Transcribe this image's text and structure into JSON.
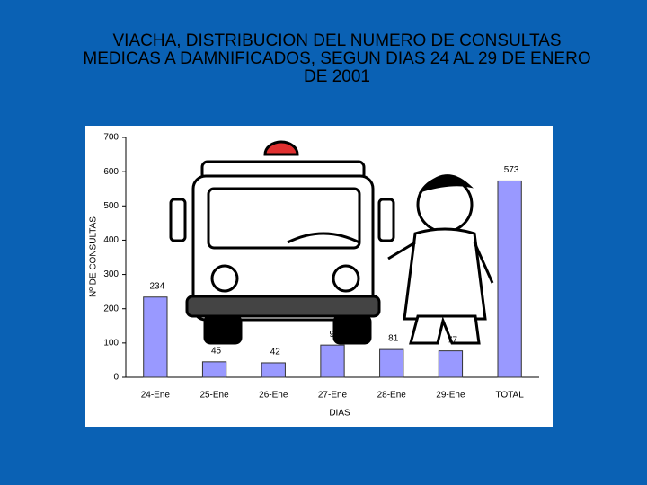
{
  "chart_data": {
    "type": "bar",
    "title": "VIACHA, DISTRIBUCION DEL NUMERO DE CONSULTAS MEDICAS A DAMNIFICADOS, SEGUN DIAS  24  AL 29 DE ENERO DE 2001",
    "x_label": "DIAS",
    "y_label": "Nº DE CONSULTAS",
    "categories": [
      "24-Ene",
      "25-Ene",
      "26-Ene",
      "27-Ene",
      "28-Ene",
      "29-Ene",
      "TOTAL"
    ],
    "values": [
      234,
      45,
      42,
      94,
      81,
      77,
      573
    ],
    "color": "#9999ff",
    "ylim": [
      0,
      700
    ],
    "yticks": [
      0,
      100,
      200,
      300,
      400,
      500,
      600,
      700
    ],
    "grid": false
  }
}
